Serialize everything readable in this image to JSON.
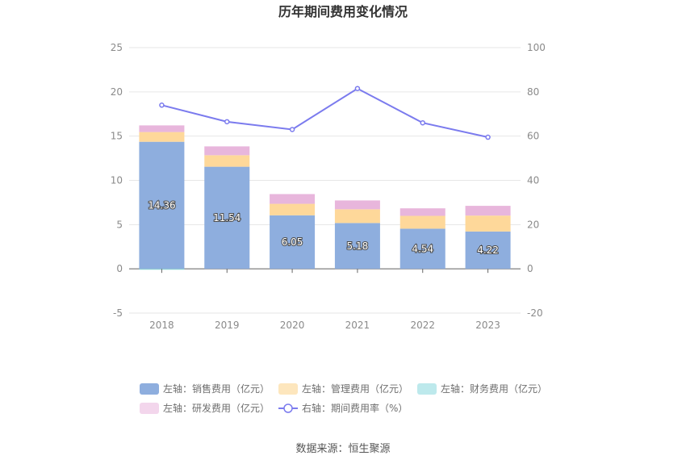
{
  "chart_data": {
    "type": "bar",
    "title": "历年期间费用变化情况",
    "categories": [
      "2018",
      "2019",
      "2020",
      "2021",
      "2022",
      "2023"
    ],
    "left_axis": {
      "min": -5,
      "max": 25,
      "ticks": [
        "-5",
        "0",
        "5",
        "10",
        "15",
        "20",
        "25"
      ]
    },
    "right_axis": {
      "min": -20,
      "max": 100,
      "ticks": [
        "-20",
        "0",
        "20",
        "40",
        "60",
        "80",
        "100"
      ]
    },
    "series": [
      {
        "name": "左轴：销售费用（亿元）",
        "axis": "left",
        "kind": "stacked-bar",
        "color": "#8eaede",
        "values": [
          14.36,
          11.54,
          6.05,
          5.18,
          4.54,
          4.22
        ],
        "labels": [
          "14.36",
          "11.54",
          "6.05",
          "5.18",
          "4.54",
          "4.22"
        ]
      },
      {
        "name": "左轴：管理费用（亿元）",
        "axis": "left",
        "kind": "stacked-bar",
        "color": "#fed89a",
        "values": [
          1.1,
          1.3,
          1.3,
          1.55,
          1.45,
          1.8
        ]
      },
      {
        "name": "左轴：财务费用（亿元）",
        "axis": "left",
        "kind": "stacked-bar",
        "color": "#96dbe0",
        "values": [
          -0.1,
          0.0,
          0.0,
          0.0,
          0.0,
          0.0
        ]
      },
      {
        "name": "左轴：研发费用（亿元）",
        "axis": "left",
        "kind": "stacked-bar",
        "color": "#e8b6dc",
        "values": [
          0.75,
          1.0,
          1.1,
          1.0,
          0.85,
          1.1
        ]
      },
      {
        "name": "右轴：期间费用率（%）",
        "axis": "right",
        "kind": "line",
        "color": "#7b7bee",
        "values": [
          74,
          66.5,
          63,
          81.5,
          66,
          59.5
        ]
      }
    ],
    "legend_position": "bottom",
    "grid": true
  },
  "footer": {
    "source": "数据来源：恒生聚源"
  }
}
